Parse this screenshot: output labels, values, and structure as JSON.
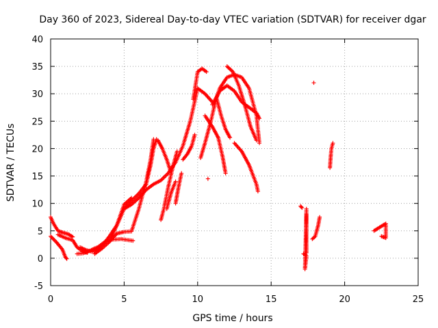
{
  "chart_data": {
    "type": "scatter",
    "title": "Day 360 of 2023, Sidereal Day-to-day VTEC variation (SDTVAR) for receiver dgar",
    "xlabel": "GPS time / hours",
    "ylabel": "SDTVAR / TECUs",
    "xlim": [
      0,
      25
    ],
    "ylim": [
      -5,
      40
    ],
    "xticks": [
      "0",
      "5",
      "10",
      "15",
      "20",
      "25"
    ],
    "yticks": [
      "-5",
      "0",
      "5",
      "10",
      "15",
      "20",
      "25",
      "30",
      "35",
      "40"
    ],
    "grid": true,
    "marker": "+",
    "marker_color": "#ff0000",
    "series": [
      {
        "name": "arc-01",
        "points": [
          [
            0,
            7.5
          ],
          [
            0.2,
            6.3
          ],
          [
            0.5,
            5.0
          ],
          [
            0.8,
            4.7
          ],
          [
            1.2,
            4.4
          ],
          [
            1.5,
            3.9
          ]
        ]
      },
      {
        "name": "arc-02",
        "points": [
          [
            0,
            4.0
          ],
          [
            0.4,
            2.9
          ],
          [
            0.8,
            1.6
          ],
          [
            1.0,
            0.2
          ],
          [
            1.1,
            -0.1
          ]
        ]
      },
      {
        "name": "arc-03",
        "points": [
          [
            0.5,
            4.3
          ],
          [
            1.0,
            3.7
          ],
          [
            1.5,
            3.3
          ],
          [
            1.8,
            2.0
          ],
          [
            2.2,
            1.2
          ],
          [
            2.5,
            1.0
          ]
        ]
      },
      {
        "name": "arc-04",
        "points": [
          [
            1.8,
            0.8
          ],
          [
            2.2,
            0.9
          ],
          [
            2.7,
            1.4
          ],
          [
            3.0,
            1.8
          ],
          [
            3.3,
            2.1
          ]
        ]
      },
      {
        "name": "arc-05",
        "points": [
          [
            2.0,
            2.0
          ],
          [
            2.4,
            1.5
          ],
          [
            2.8,
            1.2
          ],
          [
            3.2,
            1.6
          ],
          [
            3.6,
            2.6
          ],
          [
            4.0,
            4.0
          ],
          [
            4.5,
            6.0
          ],
          [
            5.0,
            9.0
          ],
          [
            5.5,
            10.5
          ],
          [
            6.0,
            11.8
          ],
          [
            6.5,
            13.5
          ],
          [
            6.8,
            17.0
          ],
          [
            7.0,
            20.0
          ],
          [
            7.2,
            21.7
          ]
        ]
      },
      {
        "name": "arc-06",
        "points": [
          [
            3.0,
            0.8
          ],
          [
            3.5,
            1.8
          ],
          [
            4.0,
            3.0
          ],
          [
            4.5,
            4.5
          ],
          [
            5.0,
            4.8
          ],
          [
            5.5,
            4.9
          ],
          [
            6.0,
            9.0
          ],
          [
            6.5,
            14.0
          ],
          [
            6.8,
            18.0
          ],
          [
            7.0,
            21.7
          ]
        ]
      },
      {
        "name": "arc-07",
        "points": [
          [
            3.3,
            2.2
          ],
          [
            3.7,
            3.0
          ],
          [
            4.2,
            3.4
          ],
          [
            4.8,
            3.5
          ],
          [
            5.3,
            3.3
          ],
          [
            5.6,
            3.2
          ]
        ]
      },
      {
        "name": "arc-08",
        "points": [
          [
            4.0,
            3.0
          ],
          [
            4.5,
            6.0
          ],
          [
            5.0,
            9.8
          ],
          [
            5.5,
            11.0
          ]
        ]
      },
      {
        "name": "arc-09",
        "points": [
          [
            5.0,
            9.0
          ],
          [
            5.5,
            9.8
          ],
          [
            6.0,
            11.0
          ],
          [
            6.5,
            12.5
          ],
          [
            7.0,
            13.5
          ],
          [
            7.5,
            14.2
          ],
          [
            8.0,
            15.5
          ],
          [
            8.5,
            17.5
          ],
          [
            9.0,
            20.5
          ],
          [
            9.5,
            25.0
          ],
          [
            10.0,
            31.0
          ],
          [
            10.5,
            30.0
          ],
          [
            11.0,
            28.5
          ]
        ]
      },
      {
        "name": "arc-10",
        "points": [
          [
            7.3,
            21.5
          ],
          [
            7.6,
            20.0
          ],
          [
            7.9,
            18.0
          ],
          [
            8.2,
            15.5
          ]
        ]
      },
      {
        "name": "arc-11",
        "points": [
          [
            7.5,
            7.0
          ],
          [
            7.7,
            9.0
          ],
          [
            8.0,
            13.0
          ],
          [
            8.3,
            16.5
          ],
          [
            8.6,
            19.5
          ]
        ]
      },
      {
        "name": "arc-12",
        "points": [
          [
            7.9,
            9.0
          ],
          [
            8.2,
            12.0
          ],
          [
            8.5,
            14.0
          ]
        ]
      },
      {
        "name": "arc-13",
        "points": [
          [
            8.5,
            10.0
          ],
          [
            8.7,
            13.0
          ],
          [
            8.9,
            15.5
          ]
        ]
      },
      {
        "name": "arc-14",
        "points": [
          [
            9.0,
            18.0
          ],
          [
            9.3,
            19.0
          ],
          [
            9.6,
            20.5
          ],
          [
            9.8,
            22.5
          ]
        ]
      },
      {
        "name": "arc-15",
        "points": [
          [
            9.7,
            29.0
          ],
          [
            10.0,
            34.0
          ],
          [
            10.3,
            34.6
          ],
          [
            10.6,
            34.0
          ]
        ]
      },
      {
        "name": "arc-16",
        "points": [
          [
            10.2,
            18.3
          ],
          [
            10.5,
            21.0
          ],
          [
            10.9,
            25.0
          ],
          [
            11.2,
            28.5
          ],
          [
            11.5,
            31.0
          ],
          [
            12.0,
            33.0
          ],
          [
            12.5,
            33.5
          ],
          [
            13.0,
            33.0
          ],
          [
            13.5,
            31.0
          ],
          [
            14.0,
            26.0
          ],
          [
            14.2,
            21.0
          ]
        ]
      },
      {
        "name": "arc-17",
        "points": [
          [
            10.5,
            26.0
          ],
          [
            11.0,
            24.0
          ],
          [
            11.4,
            22.0
          ],
          [
            11.7,
            18.5
          ],
          [
            11.9,
            15.5
          ]
        ]
      },
      {
        "name": "arc-18",
        "points": [
          [
            10.7,
            14.5
          ]
        ]
      },
      {
        "name": "arc-19",
        "points": [
          [
            11.3,
            29.0
          ],
          [
            11.6,
            26.0
          ],
          [
            11.9,
            23.5
          ],
          [
            12.2,
            22.0
          ]
        ]
      },
      {
        "name": "arc-20",
        "points": [
          [
            11.0,
            28.0
          ],
          [
            11.5,
            30.5
          ],
          [
            12.0,
            31.5
          ],
          [
            12.5,
            30.5
          ],
          [
            13.0,
            28.5
          ],
          [
            13.5,
            27.5
          ],
          [
            14.0,
            26.5
          ],
          [
            14.2,
            25.5
          ]
        ]
      },
      {
        "name": "arc-21",
        "points": [
          [
            12.0,
            35.0
          ],
          [
            12.4,
            34.0
          ],
          [
            12.8,
            31.5
          ],
          [
            13.2,
            28.0
          ],
          [
            13.6,
            24.0
          ],
          [
            14.0,
            21.5
          ]
        ]
      },
      {
        "name": "arc-22",
        "points": [
          [
            12.5,
            21.0
          ],
          [
            13.0,
            19.5
          ],
          [
            13.5,
            17.0
          ],
          [
            14.0,
            13.5
          ],
          [
            14.1,
            12.2
          ]
        ]
      },
      {
        "name": "arc-23",
        "points": [
          [
            17.0,
            9.5
          ],
          [
            17.1,
            9.2
          ]
        ]
      },
      {
        "name": "arc-24",
        "points": [
          [
            17.2,
            0.8
          ],
          [
            17.35,
            0.6
          ],
          [
            17.4,
            0.4
          ],
          [
            17.3,
            -2.0
          ],
          [
            17.4,
            9.0
          ]
        ]
      },
      {
        "name": "arc-25",
        "points": [
          [
            17.4,
            1.0
          ],
          [
            17.4,
            3.0
          ],
          [
            17.4,
            5.0
          ],
          [
            17.4,
            7.0
          ],
          [
            17.4,
            8.0
          ]
        ]
      },
      {
        "name": "arc-26",
        "points": [
          [
            17.8,
            3.5
          ],
          [
            18.0,
            4.0
          ],
          [
            18.2,
            6.0
          ],
          [
            18.3,
            7.5
          ]
        ]
      },
      {
        "name": "arc-27",
        "points": [
          [
            17.9,
            32.0
          ]
        ]
      },
      {
        "name": "arc-28",
        "points": [
          [
            19.0,
            16.5
          ],
          [
            19.05,
            18.5
          ],
          [
            19.1,
            20.0
          ],
          [
            19.2,
            21.0
          ]
        ]
      },
      {
        "name": "arc-29",
        "points": [
          [
            22.0,
            5.0
          ],
          [
            22.3,
            5.5
          ],
          [
            22.6,
            6.0
          ],
          [
            22.8,
            6.3
          ],
          [
            22.8,
            3.7
          ],
          [
            22.5,
            4.0
          ]
        ]
      }
    ]
  }
}
